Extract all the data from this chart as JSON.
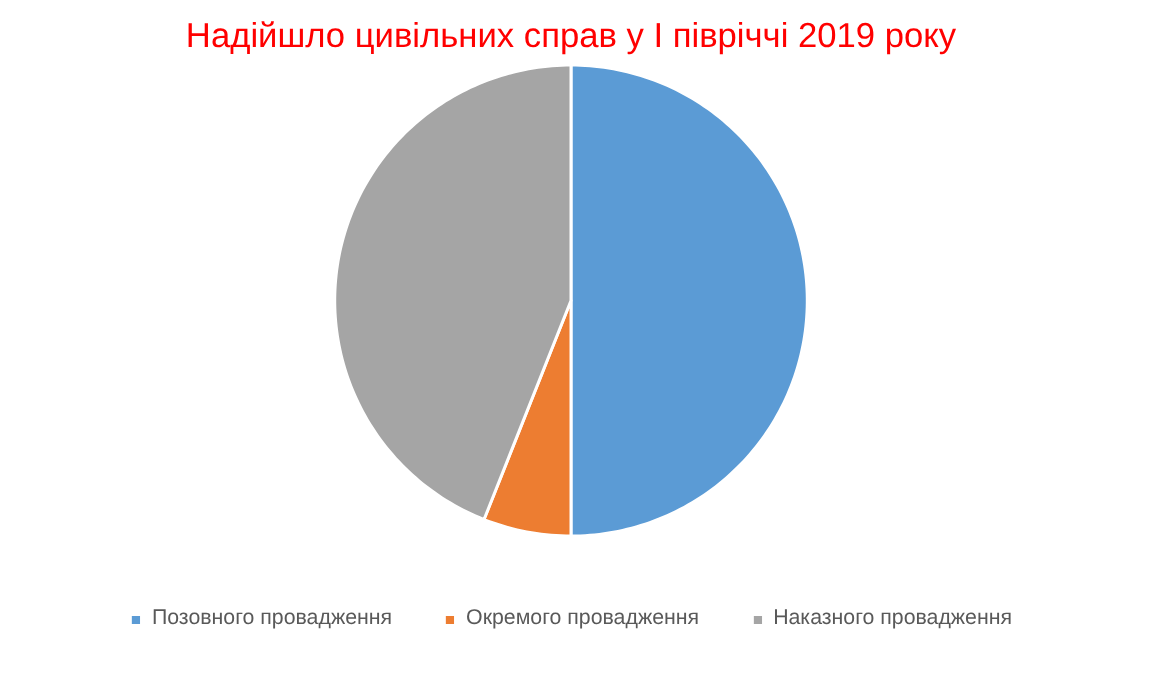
{
  "chart_data": {
    "type": "pie",
    "title": "Надійшло цивільних справ у І півріччі 2019 року",
    "categories": [
      "Позовного провадження",
      "Окремого провадження",
      "Наказного провадження"
    ],
    "values": [
      50,
      6,
      44
    ],
    "colors": [
      "#5b9bd5",
      "#ed7d31",
      "#a5a5a5"
    ],
    "legend": "bottom"
  }
}
